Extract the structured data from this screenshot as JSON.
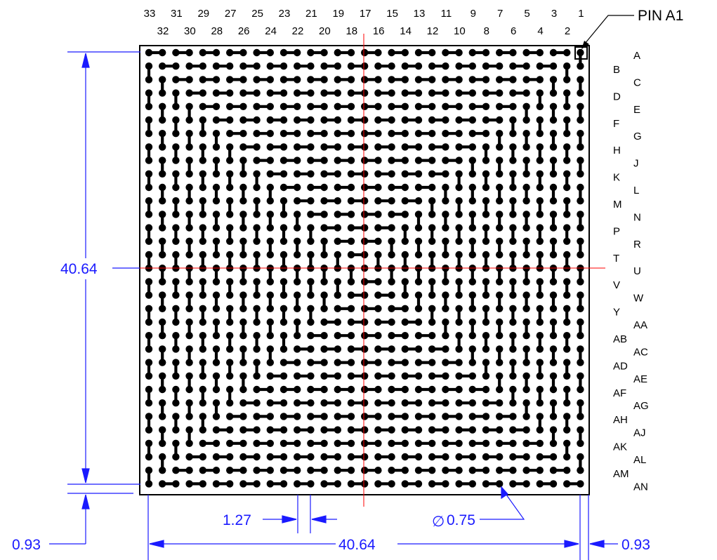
{
  "drawing": {
    "pin_callout": "PIN A1",
    "top_row_numbers": [
      "33",
      "31",
      "29",
      "27",
      "25",
      "23",
      "21",
      "19",
      "17",
      "15",
      "13",
      "11",
      "9",
      "7",
      "5",
      "3",
      "1"
    ],
    "second_row_numbers": [
      "32",
      "30",
      "28",
      "26",
      "24",
      "22",
      "20",
      "18",
      "16",
      "14",
      "12",
      "10",
      "8",
      "6",
      "4",
      "2"
    ],
    "right_col_letters": [
      "A",
      "C",
      "E",
      "G",
      "J",
      "L",
      "N",
      "R",
      "U",
      "W",
      "AA",
      "AC",
      "AE",
      "AG",
      "AJ",
      "AL",
      "AN"
    ],
    "left_col_letters": [
      "B",
      "D",
      "F",
      "H",
      "K",
      "M",
      "P",
      "T",
      "V",
      "Y",
      "AB",
      "AD",
      "AF",
      "AH",
      "AK",
      "AM"
    ],
    "dimensions": {
      "height": "40.64",
      "width": "40.64",
      "pitch": "1.27",
      "ball_diameter_symbol": "∅",
      "ball_diameter": "0.75",
      "edge_left": "0.93",
      "edge_right": "0.93"
    },
    "grid_size": 33,
    "colors": {
      "outline": "#000000",
      "dimension": "#1a1aff",
      "centerline": "#ff0000",
      "ball": "#000000"
    }
  }
}
